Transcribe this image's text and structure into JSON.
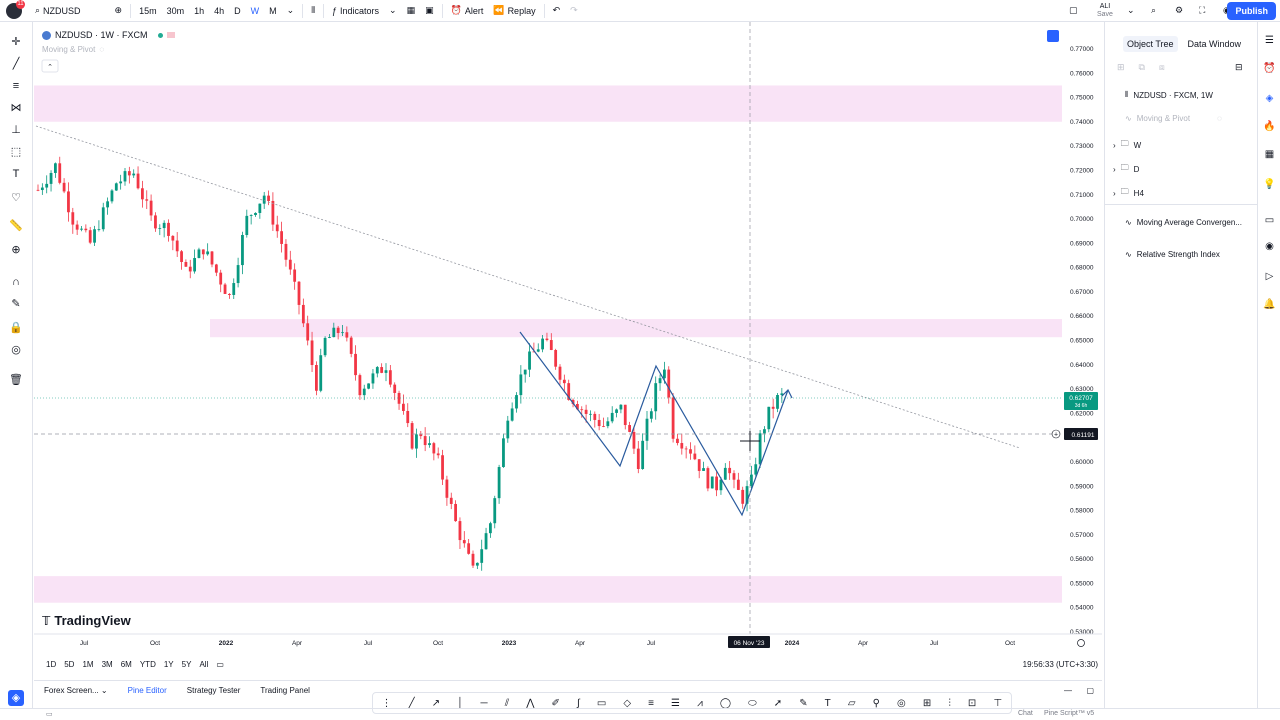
{
  "topbar": {
    "symbol": "NZDUSD",
    "intervals": [
      "15m",
      "30m",
      "1h",
      "4h",
      "D",
      "W",
      "M"
    ],
    "indicators_label": "Indicators",
    "alert_label": "Alert",
    "replay_label": "Replay",
    "publish_label": "Publish",
    "user_label": "ALI",
    "user_sub": "Save",
    "notif_count": "11"
  },
  "legend": {
    "title": "NZDUSD · 1W · FXCM",
    "indicator": "Moving & Pivot"
  },
  "price_axis": {
    "labels": [
      "0.77000",
      "0.76000",
      "0.75000",
      "0.74000",
      "0.73000",
      "0.72000",
      "0.71000",
      "0.70000",
      "0.69000",
      "0.68000",
      "0.67000",
      "0.66000",
      "0.65000",
      "0.64000",
      "0.63000",
      "0.62000",
      "0.61000",
      "0.60000",
      "0.59000",
      "0.58000",
      "0.57000",
      "0.56000",
      "0.55000",
      "0.54000",
      "0.53000"
    ],
    "last_price": "0.62707",
    "last_price_sub": "3d 6h",
    "crosshair_price": "0.61191"
  },
  "time_axis": {
    "labels": [
      "Jul",
      "Oct",
      "2022",
      "Apr",
      "Jul",
      "Oct",
      "2023",
      "Apr",
      "Jul",
      "Oct",
      "2024",
      "Apr",
      "Jul",
      "Oct"
    ],
    "crosshair_date": "06 Nov '23"
  },
  "brand": "TradingView",
  "ranges": [
    "1D",
    "5D",
    "1M",
    "3M",
    "6M",
    "YTD",
    "1Y",
    "5Y",
    "All"
  ],
  "clock": "19:56:33 (UTC+3:30)",
  "bottom_tabs": [
    "Forex Screen...",
    "Pine Editor",
    "Strategy Tester",
    "Trading Panel"
  ],
  "right_panel": {
    "tabs": [
      "Object Tree",
      "Data Window"
    ],
    "items": [
      "NZDUSD · FXCM, 1W",
      "Moving & Pivot",
      "W",
      "D",
      "H4",
      "Moving Average Convergen...",
      "Relative Strength Index"
    ]
  },
  "status": {
    "chat": "Chat",
    "pine": "Pine Script™ v5"
  },
  "colors": {
    "up": "#089981",
    "down": "#f23645",
    "zone": "#f7d9f3",
    "accent": "#2962ff"
  },
  "chart_data": {
    "type": "candlestick",
    "series": "NZDUSD weekly",
    "ylim": [
      0.53,
      0.77
    ],
    "zones": [
      [
        0.745,
        0.755
      ],
      [
        0.653,
        0.658
      ],
      [
        0.547,
        0.553
      ]
    ]
  }
}
